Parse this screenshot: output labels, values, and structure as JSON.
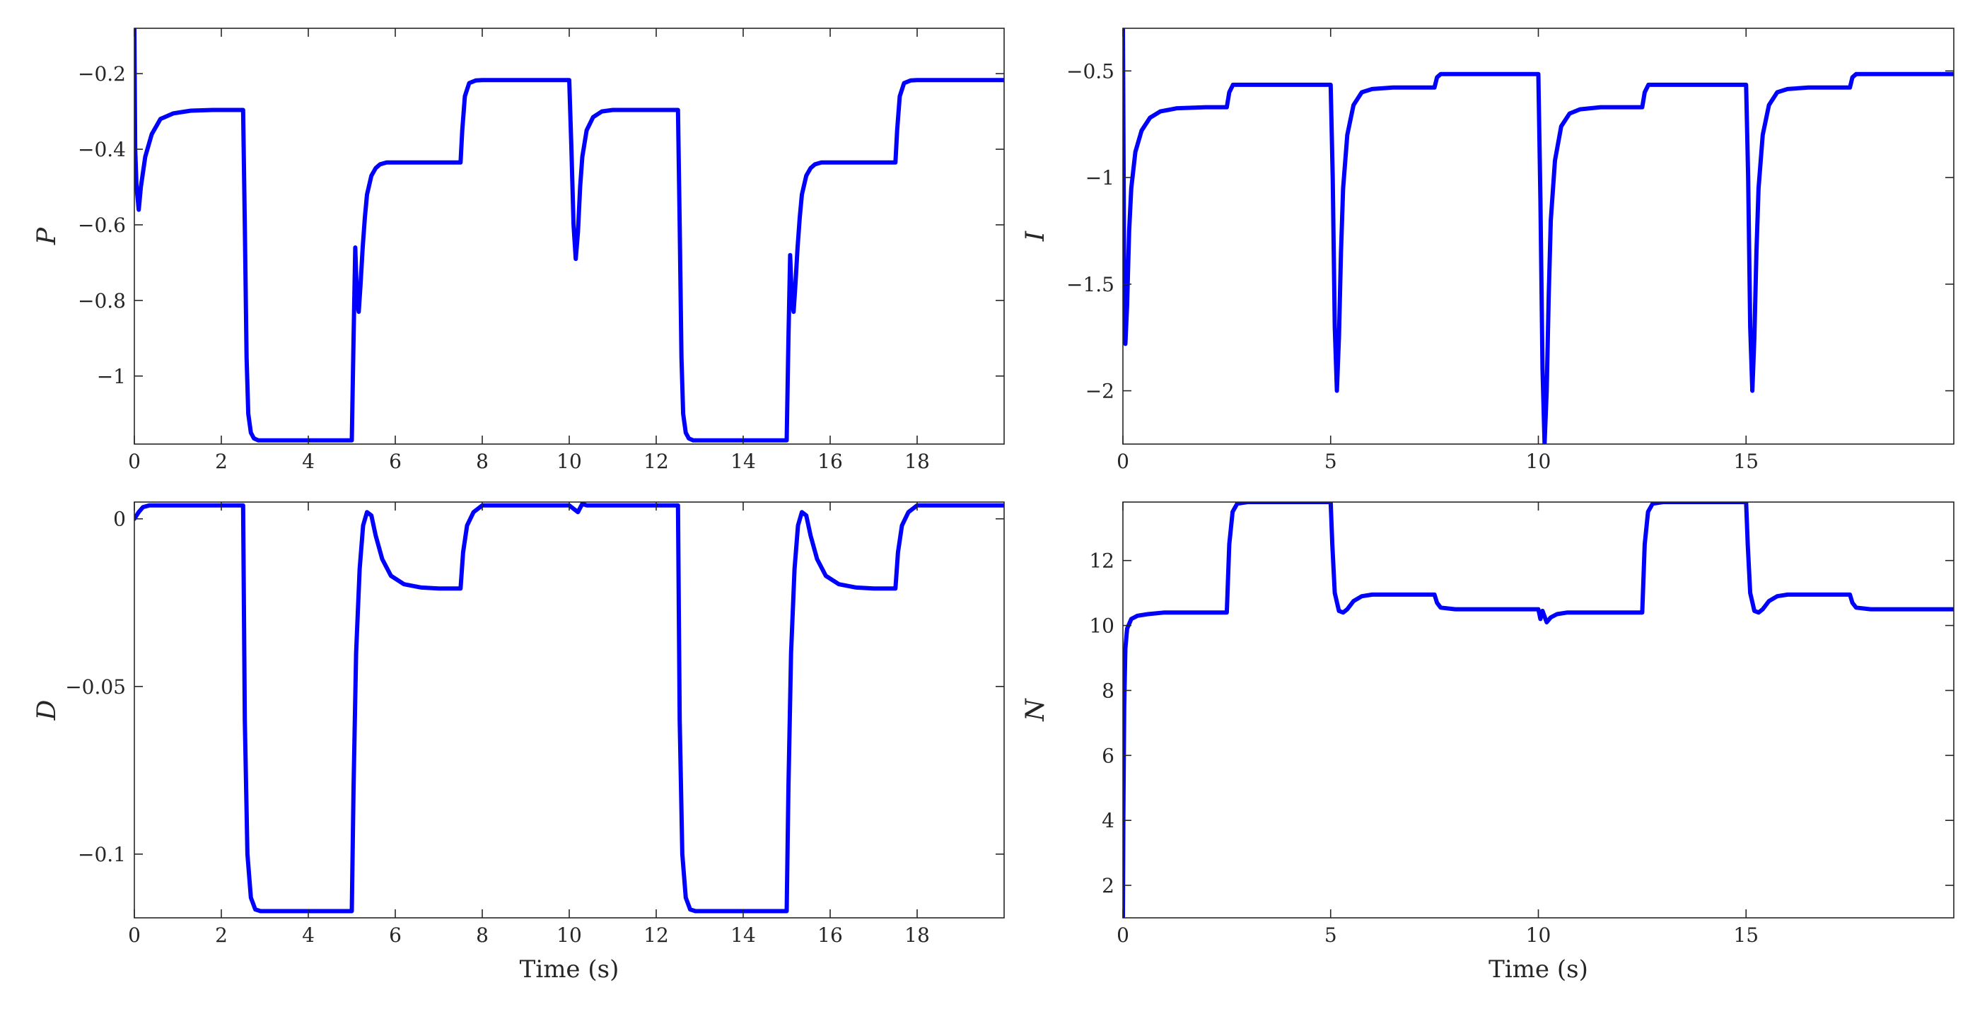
{
  "chart_data": [
    {
      "type": "line",
      "title": "",
      "xlabel": "",
      "ylabel": "P",
      "xlim": [
        0,
        20
      ],
      "ylim": [
        -1.18,
        -0.08
      ],
      "xticks": [
        0,
        2,
        4,
        6,
        8,
        10,
        12,
        14,
        16,
        18
      ],
      "xtick_labels": [
        "0",
        "2",
        "4",
        "6",
        "8",
        "10",
        "12",
        "14",
        "16",
        "18"
      ],
      "yticks": [
        -1,
        -0.8,
        -0.6,
        -0.4,
        -0.2
      ],
      "ytick_labels": [
        "−1",
        "−0.8",
        "−0.6",
        "−0.4",
        "−0.2"
      ],
      "grid": false,
      "color": "#0000ff",
      "series": [
        {
          "x": [
            0,
            0.02,
            0.05,
            0.1,
            0.15,
            0.25,
            0.4,
            0.6,
            0.9,
            1.3,
            1.8,
            2.5,
            2.54,
            2.58,
            2.62,
            2.68,
            2.75,
            2.85,
            3.0,
            4.0,
            5.0,
            5.04,
            5.08,
            5.12,
            5.16,
            5.2,
            5.25,
            5.3,
            5.35,
            5.45,
            5.55,
            5.65,
            5.8,
            6.0,
            6.5,
            7.0,
            7.5,
            7.54,
            7.6,
            7.7,
            7.85,
            8.0,
            9.0,
            10.0,
            10.05,
            10.1,
            10.15,
            10.2,
            10.25,
            10.3,
            10.4,
            10.55,
            10.75,
            11.0,
            11.5,
            12.0,
            12.5,
            12.54,
            12.58,
            12.62,
            12.68,
            12.75,
            12.85,
            13.0,
            14.0,
            15.0,
            15.04,
            15.08,
            15.12,
            15.16,
            15.2,
            15.25,
            15.3,
            15.35,
            15.45,
            15.55,
            15.65,
            15.8,
            16.0,
            16.5,
            17.0,
            17.5,
            17.54,
            17.6,
            17.7,
            17.85,
            18.0,
            19.0,
            20.0
          ],
          "y": [
            -0.08,
            -0.4,
            -0.5,
            -0.56,
            -0.5,
            -0.42,
            -0.36,
            -0.32,
            -0.305,
            -0.298,
            -0.296,
            -0.296,
            -0.6,
            -0.95,
            -1.1,
            -1.15,
            -1.165,
            -1.17,
            -1.17,
            -1.17,
            -1.17,
            -0.9,
            -0.66,
            -0.8,
            -0.83,
            -0.76,
            -0.66,
            -0.58,
            -0.52,
            -0.47,
            -0.45,
            -0.44,
            -0.435,
            -0.435,
            -0.435,
            -0.435,
            -0.435,
            -0.35,
            -0.26,
            -0.225,
            -0.218,
            -0.217,
            -0.217,
            -0.217,
            -0.4,
            -0.6,
            -0.69,
            -0.62,
            -0.5,
            -0.42,
            -0.35,
            -0.315,
            -0.3,
            -0.296,
            -0.296,
            -0.296,
            -0.296,
            -0.6,
            -0.95,
            -1.1,
            -1.15,
            -1.165,
            -1.17,
            -1.17,
            -1.17,
            -1.17,
            -0.9,
            -0.68,
            -0.8,
            -0.83,
            -0.76,
            -0.66,
            -0.58,
            -0.52,
            -0.47,
            -0.45,
            -0.44,
            -0.435,
            -0.435,
            -0.435,
            -0.435,
            -0.435,
            -0.35,
            -0.26,
            -0.225,
            -0.218,
            -0.217,
            -0.217,
            -0.217
          ]
        }
      ]
    },
    {
      "type": "line",
      "title": "",
      "xlabel": "",
      "ylabel": "I",
      "xlim": [
        0,
        20
      ],
      "ylim": [
        -2.25,
        -0.3
      ],
      "xticks": [
        0,
        5,
        10,
        15
      ],
      "xtick_labels": [
        "0",
        "5",
        "10",
        "15"
      ],
      "yticks": [
        -2,
        -1.5,
        -1,
        -0.5
      ],
      "ytick_labels": [
        "−2",
        "−1.5",
        "−1",
        "−0.5"
      ],
      "grid": false,
      "color": "#0000ff",
      "series": [
        {
          "x": [
            0,
            0.03,
            0.06,
            0.1,
            0.15,
            0.2,
            0.3,
            0.45,
            0.65,
            0.9,
            1.3,
            2.0,
            2.5,
            2.56,
            2.65,
            3.0,
            5.0,
            5.05,
            5.1,
            5.15,
            5.2,
            5.25,
            5.3,
            5.4,
            5.55,
            5.75,
            6.0,
            6.5,
            7.5,
            7.56,
            7.65,
            8.0,
            10.0,
            10.05,
            10.1,
            10.15,
            10.2,
            10.25,
            10.3,
            10.4,
            10.55,
            10.75,
            11.0,
            11.5,
            12.5,
            12.56,
            12.65,
            13.0,
            15.0,
            15.05,
            15.1,
            15.15,
            15.2,
            15.25,
            15.3,
            15.4,
            15.55,
            15.75,
            16.0,
            16.5,
            17.5,
            17.56,
            17.65,
            18.0,
            20.0
          ],
          "y": [
            -0.3,
            -1.5,
            -1.78,
            -1.6,
            -1.25,
            -1.05,
            -0.88,
            -0.78,
            -0.72,
            -0.69,
            -0.675,
            -0.67,
            -0.67,
            -0.6,
            -0.565,
            -0.565,
            -0.565,
            -1.0,
            -1.7,
            -2.0,
            -1.75,
            -1.35,
            -1.05,
            -0.8,
            -0.66,
            -0.6,
            -0.585,
            -0.578,
            -0.578,
            -0.53,
            -0.515,
            -0.515,
            -0.515,
            -1.1,
            -1.9,
            -2.25,
            -2.0,
            -1.55,
            -1.2,
            -0.92,
            -0.76,
            -0.7,
            -0.68,
            -0.67,
            -0.67,
            -0.6,
            -0.565,
            -0.565,
            -0.565,
            -1.0,
            -1.7,
            -2.0,
            -1.75,
            -1.35,
            -1.05,
            -0.8,
            -0.66,
            -0.6,
            -0.585,
            -0.578,
            -0.578,
            -0.53,
            -0.515,
            -0.515,
            -0.515
          ]
        }
      ]
    },
    {
      "type": "line",
      "title": "",
      "xlabel": "Time (s)",
      "ylabel": "D",
      "xlim": [
        0,
        20
      ],
      "ylim": [
        -0.119,
        0.005
      ],
      "xticks": [
        0,
        2,
        4,
        6,
        8,
        10,
        12,
        14,
        16,
        18
      ],
      "xtick_labels": [
        "0",
        "2",
        "4",
        "6",
        "8",
        "10",
        "12",
        "14",
        "16",
        "18"
      ],
      "yticks": [
        -0.1,
        -0.05,
        0
      ],
      "ytick_labels": [
        "−0.1",
        "−0.05",
        "0"
      ],
      "grid": false,
      "color": "#0000ff",
      "series": [
        {
          "x": [
            0,
            0.1,
            0.2,
            0.35,
            0.6,
            2.5,
            2.54,
            2.6,
            2.68,
            2.78,
            2.9,
            3.0,
            4.0,
            5.0,
            5.04,
            5.1,
            5.18,
            5.26,
            5.35,
            5.45,
            5.55,
            5.7,
            5.9,
            6.2,
            6.6,
            7.0,
            7.5,
            7.56,
            7.65,
            7.8,
            8.0,
            9.0,
            10.0,
            10.1,
            10.2,
            10.3,
            10.4,
            11.0,
            12.5,
            12.54,
            12.6,
            12.68,
            12.78,
            12.9,
            13.0,
            14.0,
            15.0,
            15.04,
            15.1,
            15.18,
            15.26,
            15.35,
            15.45,
            15.55,
            15.7,
            15.9,
            16.2,
            16.6,
            17.0,
            17.5,
            17.56,
            17.65,
            17.8,
            18.0,
            19.0,
            20.0
          ],
          "y": [
            0,
            0.002,
            0.0035,
            0.004,
            0.004,
            0.004,
            -0.06,
            -0.1,
            -0.113,
            -0.1165,
            -0.117,
            -0.117,
            -0.117,
            -0.117,
            -0.08,
            -0.04,
            -0.015,
            -0.002,
            0.002,
            0.001,
            -0.005,
            -0.012,
            -0.017,
            -0.0195,
            -0.0205,
            -0.0208,
            -0.0208,
            -0.01,
            -0.002,
            0.002,
            0.004,
            0.004,
            0.004,
            0.003,
            0.002,
            0.0045,
            0.004,
            0.004,
            0.004,
            -0.06,
            -0.1,
            -0.113,
            -0.1165,
            -0.117,
            -0.117,
            -0.117,
            -0.117,
            -0.08,
            -0.04,
            -0.015,
            -0.002,
            0.002,
            0.001,
            -0.005,
            -0.012,
            -0.017,
            -0.0195,
            -0.0205,
            -0.0208,
            -0.0208,
            -0.01,
            -0.002,
            0.002,
            0.004,
            0.004,
            0.004
          ]
        }
      ]
    },
    {
      "type": "line",
      "title": "",
      "xlabel": "Time (s)",
      "ylabel": "N",
      "xlim": [
        0,
        20
      ],
      "ylim": [
        1,
        13.8
      ],
      "xticks": [
        0,
        5,
        10,
        15
      ],
      "xtick_labels": [
        "0",
        "5",
        "10",
        "15"
      ],
      "yticks": [
        2,
        4,
        6,
        8,
        10,
        12
      ],
      "ytick_labels": [
        "2",
        "4",
        "6",
        "8",
        "10",
        "12"
      ],
      "grid": false,
      "color": "#0000ff",
      "series": [
        {
          "x": [
            0,
            0.01,
            0.03,
            0.06,
            0.1,
            0.2,
            0.35,
            0.6,
            1.0,
            2.5,
            2.56,
            2.64,
            2.75,
            3.0,
            5.0,
            5.04,
            5.1,
            5.2,
            5.3,
            5.4,
            5.55,
            5.75,
            6.0,
            6.5,
            7.5,
            7.56,
            7.65,
            8.0,
            10.0,
            10.05,
            10.1,
            10.2,
            10.3,
            10.45,
            10.7,
            11.0,
            12.5,
            12.56,
            12.64,
            12.75,
            13.0,
            15.0,
            15.04,
            15.1,
            15.2,
            15.3,
            15.4,
            15.55,
            15.75,
            16.0,
            16.5,
            17.5,
            17.56,
            17.65,
            18.0,
            20.0
          ],
          "y": [
            1.0,
            4.0,
            7.5,
            9.3,
            9.9,
            10.2,
            10.3,
            10.35,
            10.4,
            10.4,
            12.5,
            13.5,
            13.75,
            13.8,
            13.8,
            12.5,
            11.0,
            10.45,
            10.4,
            10.5,
            10.75,
            10.9,
            10.95,
            10.95,
            10.95,
            10.7,
            10.55,
            10.5,
            10.5,
            10.2,
            10.45,
            10.1,
            10.25,
            10.35,
            10.4,
            10.4,
            10.4,
            12.5,
            13.5,
            13.75,
            13.8,
            13.8,
            12.5,
            11.0,
            10.45,
            10.4,
            10.5,
            10.75,
            10.9,
            10.95,
            10.95,
            10.95,
            10.7,
            10.55,
            10.5,
            10.5
          ]
        }
      ]
    }
  ]
}
